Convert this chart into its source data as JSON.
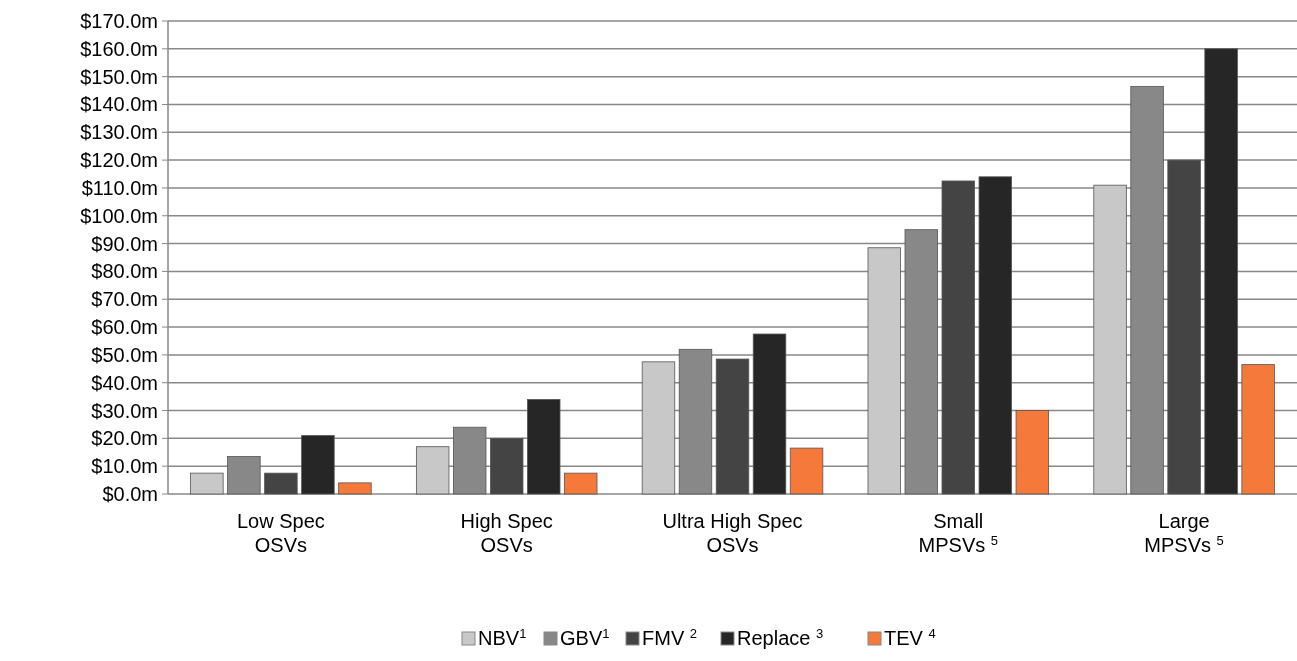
{
  "chart_data": {
    "type": "bar",
    "categories": [
      "Low Spec\nOSVs",
      "High Spec\nOSVs",
      "Ultra High Spec\nOSVs",
      "Small\nMPSVs $^{5}$",
      "Large\nMPSVs $^{5}$"
    ],
    "series": [
      {
        "name": "NBV$^{1}$",
        "color": "#c8c8c8",
        "values": [
          7.5,
          17,
          47.5,
          88.5,
          111
        ]
      },
      {
        "name": "GBV$^{1}$",
        "color": "#888888",
        "values": [
          13.5,
          24,
          52,
          95,
          146.5
        ]
      },
      {
        "name": "FMV $^{2}$",
        "color": "#444444",
        "values": [
          7.5,
          20,
          48.5,
          112.5,
          120
        ]
      },
      {
        "name": "Replace $^{3}$",
        "color": "#262626",
        "values": [
          21,
          34,
          57.5,
          114,
          160
        ]
      },
      {
        "name": "TEV $^{4}$",
        "color": "#f5793a",
        "values": [
          4,
          7.5,
          16.5,
          30,
          46.5
        ]
      }
    ],
    "ylim": [
      0,
      170
    ],
    "yticks": [
      {
        "value": 0,
        "label": "$0.0m"
      },
      {
        "value": 10,
        "label": "$10.0m"
      },
      {
        "value": 20,
        "label": "$20.0m"
      },
      {
        "value": 30,
        "label": "$30.0m"
      },
      {
        "value": 40,
        "label": "$40.0m"
      },
      {
        "value": 50,
        "label": "$50.0m"
      },
      {
        "value": 60,
        "label": "$60.0m"
      },
      {
        "value": 70,
        "label": "$70.0m"
      },
      {
        "value": 80,
        "label": "$80.0m"
      },
      {
        "value": 90,
        "label": "$90.0m"
      },
      {
        "value": 100,
        "label": "$100.0m"
      },
      {
        "value": 110,
        "label": "$110.0m"
      },
      {
        "value": 120,
        "label": "$120.0m"
      },
      {
        "value": 130,
        "label": "$130.0m"
      },
      {
        "value": 140,
        "label": "$140.0m"
      },
      {
        "value": 150,
        "label": "$150.0m"
      },
      {
        "value": 160,
        "label": "$160.0m"
      },
      {
        "value": 170,
        "label": "$170.0m"
      }
    ],
    "grid": "y",
    "legend": "bottom"
  }
}
